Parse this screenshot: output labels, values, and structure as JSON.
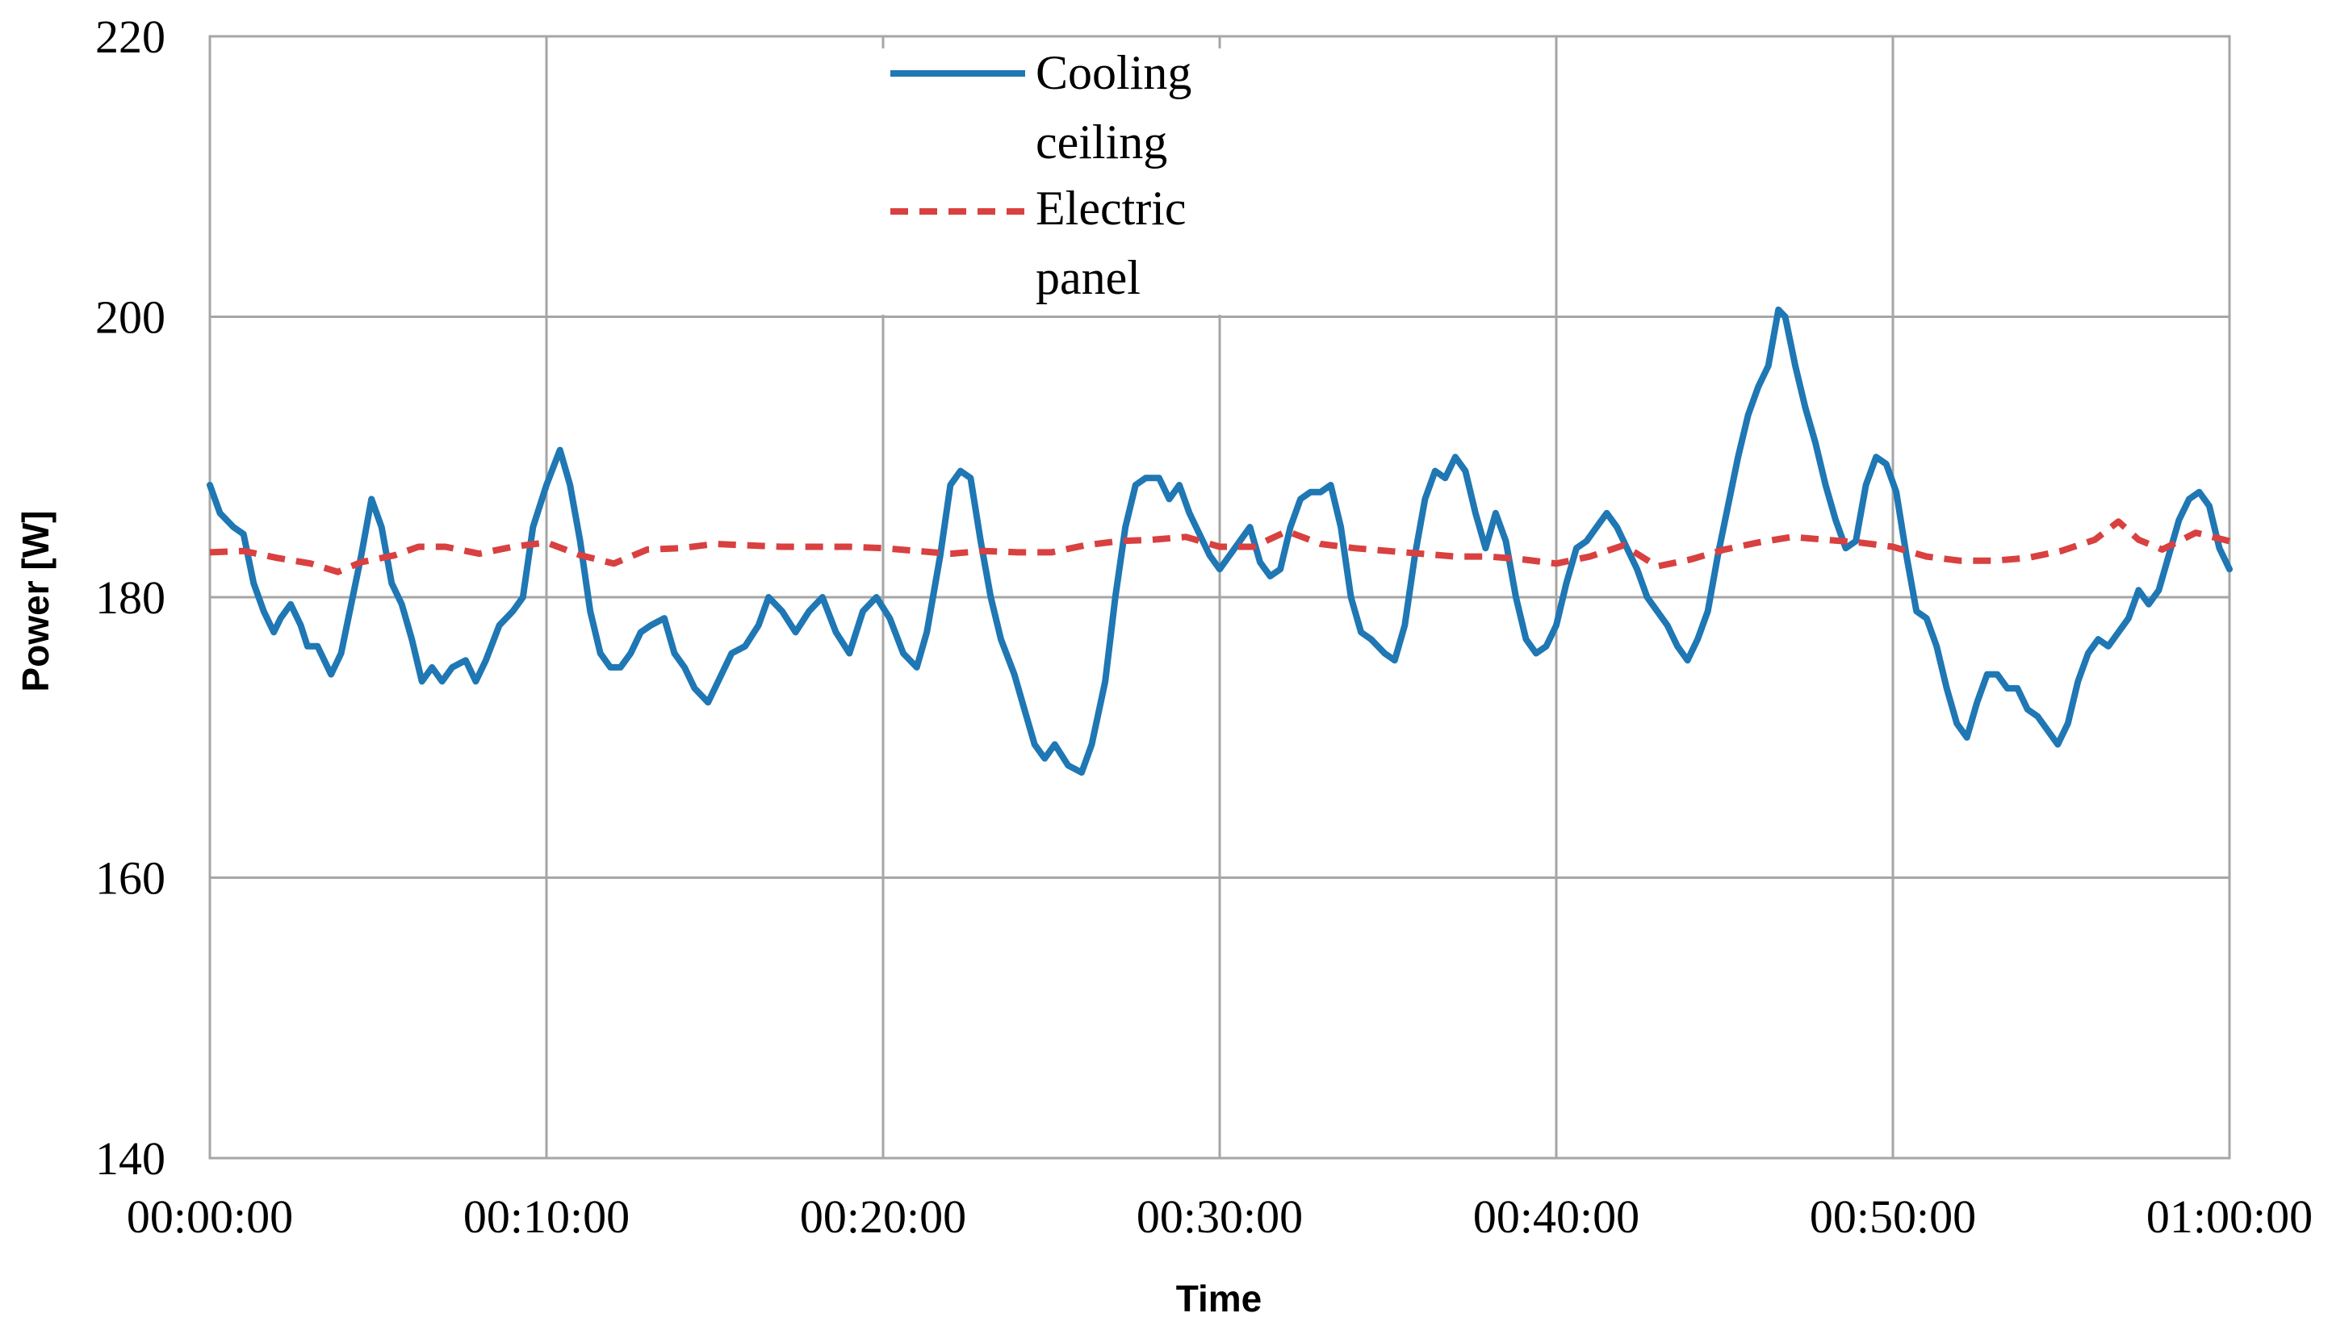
{
  "chart_data": {
    "type": "line",
    "title": "",
    "xlabel": "Time",
    "ylabel": "Power [W]",
    "ylim": [
      140,
      220
    ],
    "yticks": [
      140,
      160,
      180,
      200,
      220
    ],
    "xlim_minutes": [
      0,
      60
    ],
    "xticks": [
      {
        "minute": 0,
        "label": "00:00:00"
      },
      {
        "minute": 10,
        "label": "00:10:00"
      },
      {
        "minute": 20,
        "label": "00:20:00"
      },
      {
        "minute": 30,
        "label": "00:30:00"
      },
      {
        "minute": 40,
        "label": "00:40:00"
      },
      {
        "minute": 50,
        "label": "00:50:00"
      },
      {
        "minute": 60,
        "label": "01:00:00"
      }
    ],
    "grid": true,
    "legend_position": "top-center",
    "series": [
      {
        "name": "Cooling ceiling",
        "legend_lines": [
          "Cooling",
          "ceiling"
        ],
        "color": "#1f77b4",
        "style": "solid",
        "points": [
          [
            0,
            188
          ],
          [
            0.3,
            186
          ],
          [
            0.7,
            185
          ],
          [
            1.0,
            184.5
          ],
          [
            1.3,
            181
          ],
          [
            1.6,
            179
          ],
          [
            1.9,
            177.5
          ],
          [
            2.1,
            178.5
          ],
          [
            2.4,
            179.5
          ],
          [
            2.7,
            178
          ],
          [
            2.9,
            176.5
          ],
          [
            3.2,
            176.5
          ],
          [
            3.6,
            174.5
          ],
          [
            3.9,
            176
          ],
          [
            4.2,
            179.5
          ],
          [
            4.5,
            183
          ],
          [
            4.8,
            187
          ],
          [
            5.1,
            185
          ],
          [
            5.4,
            181
          ],
          [
            5.7,
            179.5
          ],
          [
            6.0,
            177
          ],
          [
            6.3,
            174
          ],
          [
            6.6,
            175
          ],
          [
            6.9,
            174
          ],
          [
            7.2,
            175
          ],
          [
            7.6,
            175.5
          ],
          [
            7.9,
            174
          ],
          [
            8.2,
            175.5
          ],
          [
            8.6,
            178
          ],
          [
            9.0,
            179
          ],
          [
            9.3,
            180
          ],
          [
            9.6,
            185
          ],
          [
            10.0,
            188
          ],
          [
            10.4,
            190.5
          ],
          [
            10.7,
            188
          ],
          [
            11.0,
            184
          ],
          [
            11.3,
            179
          ],
          [
            11.6,
            176
          ],
          [
            11.9,
            175
          ],
          [
            12.2,
            175
          ],
          [
            12.5,
            176
          ],
          [
            12.8,
            177.5
          ],
          [
            13.1,
            178
          ],
          [
            13.5,
            178.5
          ],
          [
            13.8,
            176
          ],
          [
            14.1,
            175
          ],
          [
            14.4,
            173.5
          ],
          [
            14.8,
            172.5
          ],
          [
            15.1,
            174
          ],
          [
            15.5,
            176
          ],
          [
            15.9,
            176.5
          ],
          [
            16.3,
            178
          ],
          [
            16.6,
            180
          ],
          [
            17.0,
            179
          ],
          [
            17.4,
            177.5
          ],
          [
            17.8,
            179
          ],
          [
            18.2,
            180
          ],
          [
            18.6,
            177.5
          ],
          [
            19.0,
            176
          ],
          [
            19.4,
            179
          ],
          [
            19.8,
            180
          ],
          [
            20.2,
            178.5
          ],
          [
            20.6,
            176
          ],
          [
            21.0,
            175
          ],
          [
            21.3,
            177.5
          ],
          [
            21.7,
            183
          ],
          [
            22.0,
            188
          ],
          [
            22.3,
            189
          ],
          [
            22.6,
            188.5
          ],
          [
            22.9,
            184
          ],
          [
            23.2,
            180
          ],
          [
            23.5,
            177
          ],
          [
            23.9,
            174.5
          ],
          [
            24.2,
            172
          ],
          [
            24.5,
            169.5
          ],
          [
            24.8,
            168.5
          ],
          [
            25.1,
            169.5
          ],
          [
            25.5,
            168
          ],
          [
            25.9,
            167.5
          ],
          [
            26.2,
            169.5
          ],
          [
            26.6,
            174
          ],
          [
            26.9,
            180
          ],
          [
            27.2,
            185
          ],
          [
            27.5,
            188
          ],
          [
            27.8,
            188.5
          ],
          [
            28.2,
            188.5
          ],
          [
            28.5,
            187
          ],
          [
            28.8,
            188
          ],
          [
            29.1,
            186
          ],
          [
            29.4,
            184.5
          ],
          [
            29.7,
            183
          ],
          [
            30.0,
            182
          ],
          [
            30.3,
            183
          ],
          [
            30.6,
            184
          ],
          [
            30.9,
            185
          ],
          [
            31.2,
            182.5
          ],
          [
            31.5,
            181.5
          ],
          [
            31.8,
            182
          ],
          [
            32.1,
            185
          ],
          [
            32.4,
            187
          ],
          [
            32.7,
            187.5
          ],
          [
            33.0,
            187.5
          ],
          [
            33.3,
            188
          ],
          [
            33.6,
            185
          ],
          [
            33.9,
            180
          ],
          [
            34.2,
            177.5
          ],
          [
            34.5,
            177
          ],
          [
            34.9,
            176
          ],
          [
            35.2,
            175.5
          ],
          [
            35.5,
            178
          ],
          [
            35.8,
            183
          ],
          [
            36.1,
            187
          ],
          [
            36.4,
            189
          ],
          [
            36.7,
            188.5
          ],
          [
            37.0,
            190
          ],
          [
            37.3,
            189
          ],
          [
            37.6,
            186
          ],
          [
            37.9,
            183.5
          ],
          [
            38.2,
            186
          ],
          [
            38.5,
            184
          ],
          [
            38.8,
            180
          ],
          [
            39.1,
            177
          ],
          [
            39.4,
            176
          ],
          [
            39.7,
            176.5
          ],
          [
            40.0,
            178
          ],
          [
            40.3,
            181
          ],
          [
            40.6,
            183.5
          ],
          [
            40.9,
            184
          ],
          [
            41.2,
            185
          ],
          [
            41.5,
            186
          ],
          [
            41.8,
            185
          ],
          [
            42.1,
            183.5
          ],
          [
            42.4,
            182
          ],
          [
            42.7,
            180
          ],
          [
            43.0,
            179
          ],
          [
            43.3,
            178
          ],
          [
            43.6,
            176.5
          ],
          [
            43.9,
            175.5
          ],
          [
            44.2,
            177
          ],
          [
            44.5,
            179
          ],
          [
            44.8,
            183
          ],
          [
            45.1,
            186.5
          ],
          [
            45.4,
            190
          ],
          [
            45.7,
            193
          ],
          [
            46.0,
            195
          ],
          [
            46.3,
            196.5
          ],
          [
            46.6,
            200.5
          ],
          [
            46.8,
            200
          ],
          [
            47.1,
            196.5
          ],
          [
            47.4,
            193.5
          ],
          [
            47.7,
            191
          ],
          [
            48.0,
            188
          ],
          [
            48.3,
            185.5
          ],
          [
            48.6,
            183.5
          ],
          [
            48.9,
            184
          ],
          [
            49.2,
            188
          ],
          [
            49.5,
            190
          ],
          [
            49.8,
            189.5
          ],
          [
            50.1,
            187.5
          ],
          [
            50.4,
            183
          ],
          [
            50.7,
            179
          ],
          [
            51.0,
            178.5
          ],
          [
            51.3,
            176.5
          ],
          [
            51.6,
            173.5
          ],
          [
            51.9,
            171
          ],
          [
            52.2,
            170
          ],
          [
            52.5,
            172.5
          ],
          [
            52.8,
            174.5
          ],
          [
            53.1,
            174.5
          ],
          [
            53.4,
            173.5
          ],
          [
            53.7,
            173.5
          ],
          [
            54.0,
            172
          ],
          [
            54.3,
            171.5
          ],
          [
            54.6,
            170.5
          ],
          [
            54.9,
            169.5
          ],
          [
            55.2,
            171
          ],
          [
            55.5,
            174
          ],
          [
            55.8,
            176
          ],
          [
            56.1,
            177
          ],
          [
            56.4,
            176.5
          ],
          [
            56.7,
            177.5
          ],
          [
            57.0,
            178.5
          ],
          [
            57.3,
            180.5
          ],
          [
            57.6,
            179.5
          ],
          [
            57.9,
            180.5
          ],
          [
            58.2,
            183
          ],
          [
            58.5,
            185.5
          ],
          [
            58.8,
            187
          ],
          [
            59.1,
            187.5
          ],
          [
            59.4,
            186.5
          ],
          [
            59.7,
            183.5
          ],
          [
            60.0,
            182
          ]
        ]
      },
      {
        "name": "Electric panel",
        "legend_lines": [
          "Electric",
          "panel"
        ],
        "color": "#d94040",
        "style": "dashed",
        "points": [
          [
            0,
            183.2
          ],
          [
            1,
            183.3
          ],
          [
            2,
            182.8
          ],
          [
            3,
            182.4
          ],
          [
            3.8,
            181.8
          ],
          [
            4.5,
            182.5
          ],
          [
            5.5,
            183
          ],
          [
            6.2,
            183.6
          ],
          [
            7,
            183.6
          ],
          [
            8,
            183.1
          ],
          [
            9,
            183.6
          ],
          [
            10,
            183.9
          ],
          [
            11,
            183
          ],
          [
            12,
            182.4
          ],
          [
            13,
            183.4
          ],
          [
            14,
            183.5
          ],
          [
            15,
            183.8
          ],
          [
            16,
            183.7
          ],
          [
            17,
            183.6
          ],
          [
            18,
            183.6
          ],
          [
            19,
            183.6
          ],
          [
            20,
            183.5
          ],
          [
            21,
            183.3
          ],
          [
            22,
            183.1
          ],
          [
            23,
            183.3
          ],
          [
            24,
            183.2
          ],
          [
            25,
            183.2
          ],
          [
            26,
            183.7
          ],
          [
            27,
            184
          ],
          [
            28,
            184.1
          ],
          [
            29,
            184.3
          ],
          [
            30,
            183.6
          ],
          [
            31,
            183.6
          ],
          [
            32,
            184.7
          ],
          [
            33,
            183.8
          ],
          [
            34,
            183.5
          ],
          [
            35,
            183.3
          ],
          [
            36,
            183.1
          ],
          [
            37,
            182.9
          ],
          [
            38,
            182.9
          ],
          [
            39,
            182.7
          ],
          [
            40,
            182.4
          ],
          [
            41,
            182.9
          ],
          [
            42,
            183.7
          ],
          [
            43,
            182.2
          ],
          [
            44,
            182.7
          ],
          [
            45,
            183.4
          ],
          [
            46,
            183.9
          ],
          [
            47,
            184.3
          ],
          [
            48,
            184.1
          ],
          [
            49,
            183.9
          ],
          [
            50,
            183.6
          ],
          [
            51,
            182.9
          ],
          [
            52,
            182.6
          ],
          [
            53,
            182.6
          ],
          [
            54,
            182.8
          ],
          [
            55,
            183.3
          ],
          [
            56,
            184.1
          ],
          [
            56.7,
            185.4
          ],
          [
            57.3,
            184.1
          ],
          [
            58,
            183.4
          ],
          [
            59,
            184.6
          ],
          [
            60,
            184
          ]
        ]
      }
    ]
  }
}
